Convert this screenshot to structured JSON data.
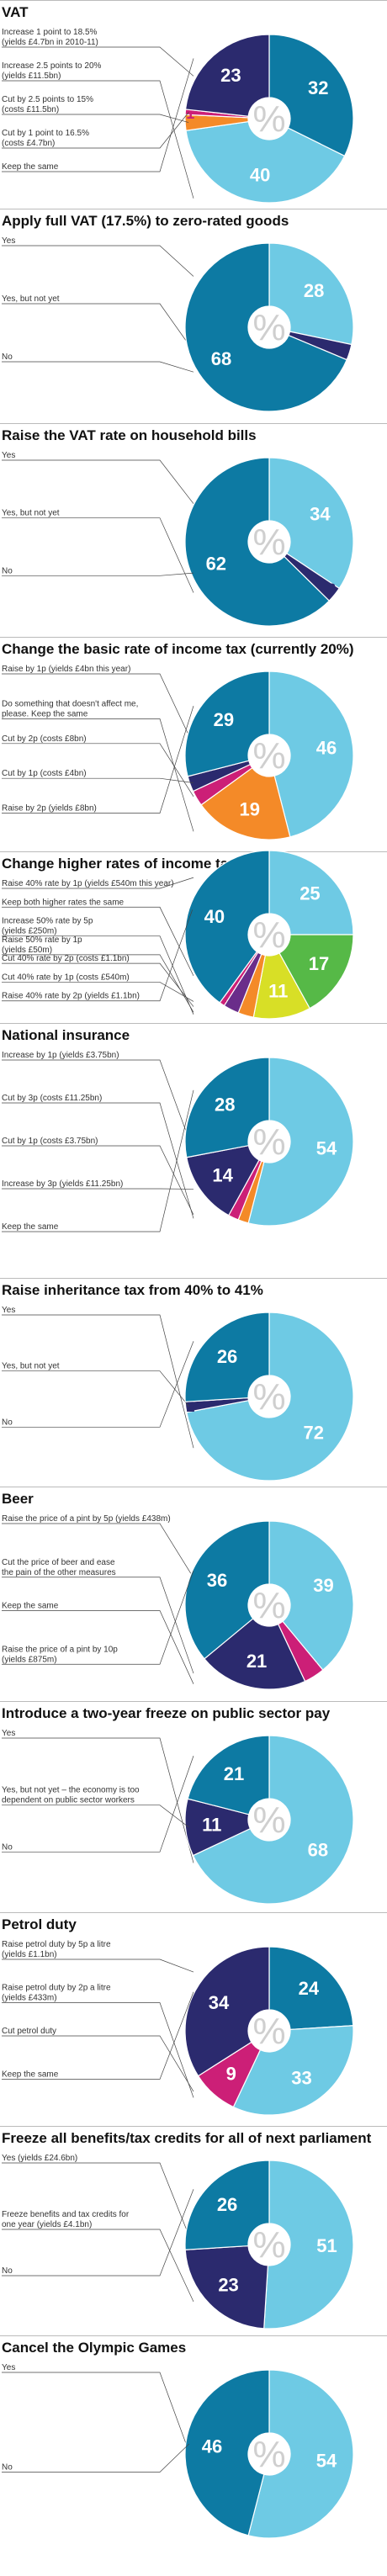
{
  "colors": {
    "light_blue": "#6ecae4",
    "teal": "#0d7aa3",
    "navy": "#2b2a6e",
    "orange": "#f48a28",
    "magenta": "#cc1f77",
    "green": "#56b947",
    "yellow": "#d8df26",
    "purple": "#6a2d8a"
  },
  "center_symbol": "%",
  "chart_data": [
    {
      "type": "pie",
      "title": "VAT",
      "options": [
        {
          "label": [
            "Increase 1 point to 18.5%",
            "(yields £4.7bn in 2010-11)"
          ],
          "value": 32,
          "color": "teal"
        },
        {
          "label": [
            "Increase 2.5 points to 20%",
            "(yields £11.5bn)"
          ],
          "value": 40,
          "color": "light_blue"
        },
        {
          "label": [
            "Cut by 2.5 points to 15%",
            "(costs £11.5bn)"
          ],
          "value": 3,
          "color": "orange"
        },
        {
          "label": [
            "Cut by 1 point to 16.5%",
            "(costs £4.7bn)"
          ],
          "value": 1,
          "color": "magenta"
        },
        {
          "label": [
            "Keep the same"
          ],
          "value": 23,
          "color": "navy"
        }
      ]
    },
    {
      "type": "pie",
      "title": "Apply full VAT (17.5%) to zero-rated goods",
      "options": [
        {
          "label": [
            "Yes"
          ],
          "value": 28,
          "color": "light_blue"
        },
        {
          "label": [
            "Yes, but not yet"
          ],
          "value": 3,
          "color": "navy"
        },
        {
          "label": [
            "No"
          ],
          "value": 68,
          "color": "teal"
        }
      ]
    },
    {
      "type": "pie",
      "title": "Raise the VAT rate on household bills",
      "options": [
        {
          "label": [
            "Yes"
          ],
          "value": 34,
          "color": "light_blue"
        },
        {
          "label": [
            "Yes, but not yet"
          ],
          "value": 3,
          "color": "navy"
        },
        {
          "label": [
            "No"
          ],
          "value": 62,
          "color": "teal"
        }
      ]
    },
    {
      "type": "pie",
      "title": "Change the basic rate of income tax (currently 20%)",
      "options": [
        {
          "label": [
            "Raise by 1p (yields £4bn this year)"
          ],
          "value": 46,
          "color": "light_blue"
        },
        {
          "label": [
            "Do something that doesn't affect me,",
            "please. Keep the same"
          ],
          "value": 19,
          "color": "orange"
        },
        {
          "label": [
            "Cut by 2p (costs £8bn)"
          ],
          "value": 3,
          "color": "magenta"
        },
        {
          "label": [
            "Cut by 1p (costs £4bn)"
          ],
          "value": 3,
          "color": "navy"
        },
        {
          "label": [
            "Raise by 2p (yields £8bn)"
          ],
          "value": 29,
          "color": "teal"
        }
      ]
    },
    {
      "type": "pie",
      "title": "Change higher rates of income tax",
      "options": [
        {
          "label": [
            "Raise 40% rate by 1p (yields £540m this year)"
          ],
          "value": 25,
          "color": "light_blue"
        },
        {
          "label": [
            "Keep both higher rates the same"
          ],
          "value": 17,
          "color": "green"
        },
        {
          "label": [
            "Increase 50% rate by 5p",
            "(yields £250m)"
          ],
          "value": 11,
          "color": "yellow"
        },
        {
          "label": [
            "Raise 50% rate by 1p",
            "(yields £50m)"
          ],
          "value": 3,
          "color": "orange"
        },
        {
          "label": [
            "Cut 40% rate by 2p (costs £1.1bn)"
          ],
          "value": 3,
          "color": "purple"
        },
        {
          "label": [
            "Cut 40% rate by 1p (costs £540m)"
          ],
          "value": 1,
          "color": "magenta"
        },
        {
          "label": [
            "Raise 40% rate by 2p (yields £1.1bn)"
          ],
          "value": 40,
          "color": "teal"
        }
      ]
    },
    {
      "type": "pie",
      "title": "National insurance",
      "options": [
        {
          "label": [
            "Increase by 1p (yields £3.75bn)"
          ],
          "value": 54,
          "color": "light_blue"
        },
        {
          "label": [
            "Cut by 3p (costs £11.25bn)"
          ],
          "value": 2,
          "color": "orange"
        },
        {
          "label": [
            "Cut by 1p (costs £3.75bn)"
          ],
          "value": 2,
          "color": "magenta"
        },
        {
          "label": [
            "Increase by 3p (yields £11.25bn)"
          ],
          "value": 14,
          "color": "navy"
        },
        {
          "label": [
            "Keep the same"
          ],
          "value": 28,
          "color": "teal"
        }
      ]
    },
    {
      "type": "pie",
      "title": "Raise inheritance tax from 40% to 41%",
      "options": [
        {
          "label": [
            "Yes"
          ],
          "value": 72,
          "color": "light_blue"
        },
        {
          "label": [
            "Yes, but not yet"
          ],
          "value": 2,
          "color": "navy"
        },
        {
          "label": [
            "No"
          ],
          "value": 26,
          "color": "teal"
        }
      ]
    },
    {
      "type": "pie",
      "title": "Beer",
      "options": [
        {
          "label": [
            "Raise the price of a pint by 5p (yields £438m)"
          ],
          "value": 39,
          "color": "light_blue"
        },
        {
          "label": [
            "Cut the price of beer and ease",
            "the pain of the other measures"
          ],
          "value": 4,
          "color": "magenta"
        },
        {
          "label": [
            "Keep the same"
          ],
          "value": 21,
          "color": "navy"
        },
        {
          "label": [
            "Raise the price of a pint by 10p",
            "(yields £875m)"
          ],
          "value": 36,
          "color": "teal"
        }
      ]
    },
    {
      "type": "pie",
      "title": "Introduce a two-year freeze on public sector pay",
      "options": [
        {
          "label": [
            "Yes"
          ],
          "value": 68,
          "color": "light_blue"
        },
        {
          "label": [
            "Yes, but not yet – the economy is too",
            "dependent on public sector workers"
          ],
          "value": 11,
          "color": "navy"
        },
        {
          "label": [
            "No"
          ],
          "value": 21,
          "color": "teal"
        }
      ]
    },
    {
      "type": "pie",
      "title": "Petrol duty",
      "options": [
        {
          "label": [
            "Raise petrol duty by 5p a litre",
            "(yields £1.1bn)"
          ],
          "value": 24,
          "color": "teal"
        },
        {
          "label": [
            "Raise petrol duty by 2p a litre",
            "(yields £433m)"
          ],
          "value": 33,
          "color": "light_blue"
        },
        {
          "label": [
            "Cut petrol duty"
          ],
          "value": 9,
          "color": "magenta"
        },
        {
          "label": [
            "Keep the same"
          ],
          "value": 34,
          "color": "navy"
        }
      ]
    },
    {
      "type": "pie",
      "title": "Freeze all benefits/tax credits for all of next parliament",
      "options": [
        {
          "label": [
            "Yes (yields £24.6bn)"
          ],
          "value": 51,
          "color": "light_blue"
        },
        {
          "label": [
            "Freeze benefits and tax credits for",
            "one year (yields £4.1bn)"
          ],
          "value": 23,
          "color": "navy"
        },
        {
          "label": [
            "No"
          ],
          "value": 26,
          "color": "teal"
        }
      ]
    },
    {
      "type": "pie",
      "title": "Cancel the Olympic Games",
      "options": [
        {
          "label": [
            "Yes"
          ],
          "value": 54,
          "color": "light_blue"
        },
        {
          "label": [
            "No"
          ],
          "value": 46,
          "color": "teal"
        }
      ]
    }
  ]
}
